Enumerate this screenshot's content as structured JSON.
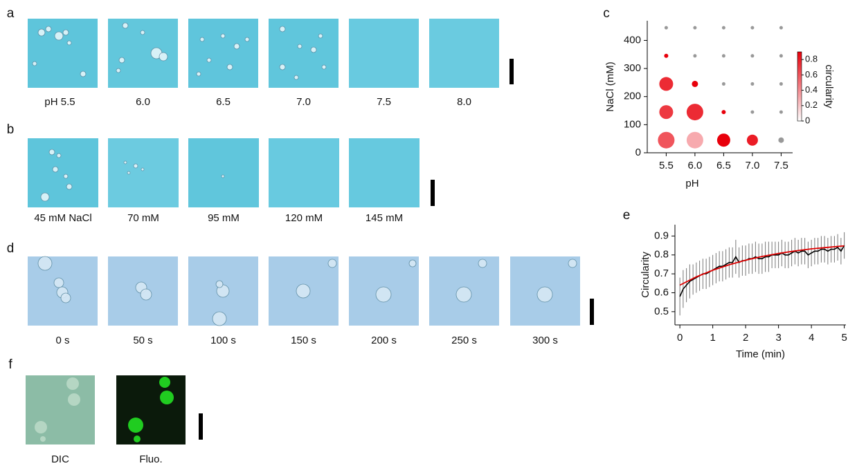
{
  "panels": {
    "a": {
      "label": "a",
      "captions": [
        "pH 5.5",
        "6.0",
        "6.5",
        "7.0",
        "7.5",
        "8.0"
      ]
    },
    "b": {
      "label": "b",
      "captions": [
        "45 mM NaCl",
        "70 mM",
        "95 mM",
        "120 mM",
        "145 mM"
      ]
    },
    "d": {
      "label": "d",
      "captions": [
        "0 s",
        "50 s",
        "100 s",
        "150 s",
        "200 s",
        "250 s",
        "300 s"
      ]
    },
    "f": {
      "label": "f",
      "captions": [
        "DIC",
        "Fluo."
      ]
    }
  },
  "chart_data": [
    {
      "type": "bubble",
      "label": "c",
      "xlabel": "pH",
      "ylabel": "NaCl (mM)",
      "x": [
        5.5,
        5.5,
        5.5,
        5.5,
        5.5,
        6,
        6,
        6,
        6,
        6,
        6.5,
        6.5,
        6.5,
        6.5,
        6.5,
        7,
        7,
        7,
        7,
        7,
        7.5,
        7.5,
        7.5,
        7.5,
        7.5
      ],
      "y": [
        45,
        145,
        245,
        345,
        445,
        45,
        145,
        245,
        345,
        445,
        45,
        145,
        245,
        345,
        445,
        45,
        145,
        245,
        345,
        445,
        45,
        145,
        245,
        345,
        445
      ],
      "sizes": [
        24,
        20,
        20,
        6,
        5,
        24,
        24,
        9,
        5,
        5,
        19,
        6,
        5,
        5,
        5,
        16,
        5,
        5,
        5,
        5,
        8,
        5,
        5,
        5,
        5
      ],
      "circularity": [
        0.6,
        0.7,
        0.75,
        0.9,
        null,
        0.3,
        0.75,
        0.9,
        null,
        null,
        0.9,
        0.9,
        null,
        null,
        null,
        0.8,
        null,
        null,
        null,
        null,
        null,
        null,
        null,
        null,
        null
      ],
      "null_color": "#999999",
      "colormap": [
        "#ffffff",
        "#e8000b"
      ],
      "colorbar_label": "circularity",
      "clim": [
        0,
        0.9
      ],
      "cticks": [
        0,
        0.2,
        0.4,
        0.6,
        0.8
      ],
      "xlim": [
        5.17,
        7.7
      ],
      "xticks": [
        5.5,
        {
          "value": 6,
          "label": "6.0"
        },
        6.5,
        {
          "value": 7,
          "label": "7.0"
        },
        7.5
      ],
      "ylim": [
        0,
        470
      ],
      "yticks": [
        0,
        100,
        200,
        300,
        400
      ]
    },
    {
      "type": "line",
      "label": "e",
      "xlabel": "Time (min)",
      "ylabel": "Circularity",
      "series": [
        {
          "color": "#000000",
          "x": [
            0,
            0.1,
            0.2,
            0.3,
            0.4,
            0.5,
            0.6,
            0.7,
            0.8,
            0.9,
            1,
            1.1,
            1.2,
            1.3,
            1.4,
            1.5,
            1.6,
            1.7,
            1.8,
            1.9,
            2,
            2.1,
            2.2,
            2.3,
            2.4,
            2.5,
            2.6,
            2.7,
            2.8,
            2.9,
            3,
            3.1,
            3.2,
            3.3,
            3.4,
            3.5,
            3.6,
            3.7,
            3.8,
            3.9,
            4,
            4.1,
            4.2,
            4.3,
            4.4,
            4.5,
            4.6,
            4.7,
            4.8,
            4.9,
            5
          ],
          "values": [
            0.58,
            0.62,
            0.64,
            0.66,
            0.67,
            0.68,
            0.69,
            0.7,
            0.7,
            0.71,
            0.72,
            0.73,
            0.74,
            0.74,
            0.75,
            0.76,
            0.76,
            0.79,
            0.76,
            0.77,
            0.77,
            0.78,
            0.78,
            0.79,
            0.78,
            0.78,
            0.79,
            0.79,
            0.8,
            0.8,
            0.8,
            0.81,
            0.8,
            0.8,
            0.81,
            0.82,
            0.81,
            0.82,
            0.82,
            0.8,
            0.81,
            0.82,
            0.82,
            0.83,
            0.83,
            0.82,
            0.83,
            0.83,
            0.84,
            0.82,
            0.85
          ],
          "errors": [
            0.1,
            0.1,
            0.09,
            0.09,
            0.08,
            0.08,
            0.08,
            0.08,
            0.08,
            0.08,
            0.08,
            0.08,
            0.08,
            0.08,
            0.08,
            0.08,
            0.08,
            0.09,
            0.08,
            0.08,
            0.08,
            0.08,
            0.08,
            0.08,
            0.08,
            0.08,
            0.08,
            0.08,
            0.07,
            0.07,
            0.07,
            0.07,
            0.07,
            0.07,
            0.07,
            0.07,
            0.07,
            0.07,
            0.07,
            0.07,
            0.07,
            0.07,
            0.07,
            0.07,
            0.07,
            0.07,
            0.07,
            0.07,
            0.07,
            0.07,
            0.07
          ]
        },
        {
          "color": "#e00000",
          "x": [
            0,
            0.5,
            1,
            1.5,
            2,
            2.5,
            3,
            3.5,
            4,
            4.5,
            5
          ],
          "values": [
            0.64,
            0.684,
            0.719,
            0.748,
            0.772,
            0.792,
            0.808,
            0.821,
            0.832,
            0.84,
            0.848
          ]
        }
      ],
      "xlim": [
        -0.15,
        5.05
      ],
      "xticks": [
        0,
        1,
        2,
        3,
        4,
        5
      ],
      "ylim": [
        0.43,
        0.96
      ],
      "yticks": [
        0.5,
        0.6,
        0.7,
        0.8,
        0.9
      ]
    }
  ]
}
